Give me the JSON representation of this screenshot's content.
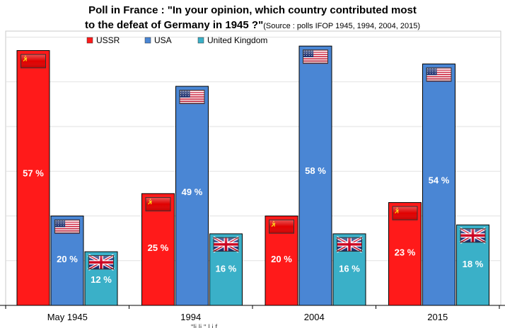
{
  "chart_data": {
    "type": "bar",
    "title_line1": "Poll in France : \"In your opinion, which country contributed most",
    "title_line2": "to the defeat of Germany in 1945 ?\"",
    "source": "(Source : polls IFOP 1945, 1994, 2004, 2015)",
    "categories": [
      "May 1945",
      "1994",
      "2004",
      "2015"
    ],
    "series": [
      {
        "name": "USSR",
        "values": [
          57,
          25,
          20,
          23
        ],
        "labels": [
          "57 %",
          "25 %",
          "20 %",
          "23 %"
        ],
        "color": "#ff1a1a",
        "flag": "ussr-flag"
      },
      {
        "name": "USA",
        "values": [
          20,
          49,
          58,
          54
        ],
        "labels": [
          "20 %",
          "49 %",
          "58 %",
          "54 %"
        ],
        "color": "#4a86d4",
        "flag": "usa-flag"
      },
      {
        "name": "United Kingdom",
        "values": [
          12,
          16,
          16,
          18
        ],
        "labels": [
          "12 %",
          "16 %",
          "16 %",
          "18 %"
        ],
        "color": "#3ab0c8",
        "flag": "uk-flag"
      }
    ],
    "ylim": [
      0,
      58.5
    ],
    "gridlines": true,
    "legend_position": "top",
    "footnote": "\"li li \"              l        i    f"
  },
  "colors": {
    "frame": "#c8c8c8",
    "grid": "#e2e2e2",
    "bar_edge": "#000000"
  }
}
